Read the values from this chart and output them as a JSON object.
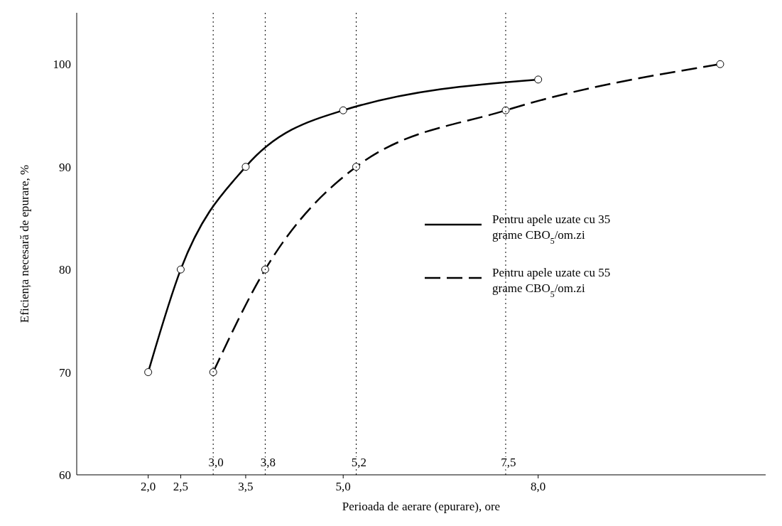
{
  "chart_data": {
    "type": "line",
    "xlabel": "Perioada de aerare  (epurare), ore",
    "ylabel": "Eficiența necesară de epurare, %",
    "xlim": [
      0.9,
      11.5
    ],
    "ylim": [
      60,
      105
    ],
    "xticks": [
      {
        "value": 2,
        "label": "2,0"
      },
      {
        "value": 2.5,
        "label": "2,5"
      },
      {
        "value": 3.5,
        "label": "3,5"
      },
      {
        "value": 5,
        "label": "5,0"
      },
      {
        "value": 8,
        "label": "8,0"
      }
    ],
    "yticks": [
      60,
      70,
      80,
      90,
      100
    ],
    "marker": "circle",
    "grid": false,
    "legend": "right",
    "series": [
      {
        "name": "Pentru apele uzate cu 35 grame CBO$_{5}$/om.zi",
        "color": "#000000",
        "line_style": "solid",
        "x": [
          2,
          2.5,
          3.5,
          5,
          8
        ],
        "values": [
          70,
          80,
          90,
          95.5,
          98.5
        ]
      },
      {
        "name": "Pentru apele uzate cu 55 grame CBO$_{5}$/om.zi",
        "color": "#000000",
        "line_style": "dashed",
        "x": [
          3,
          3.8,
          5.2,
          7.5,
          10.8
        ],
        "values": [
          70,
          80,
          90,
          95.5,
          100
        ]
      }
    ],
    "ref_lines": [
      {
        "axis": "x",
        "value": 3,
        "label": "3,0",
        "line_style": "dotted"
      },
      {
        "axis": "x",
        "value": 3.8,
        "label": "3,8",
        "line_style": "dotted"
      },
      {
        "axis": "x",
        "value": 5.2,
        "label": "5,2",
        "line_style": "dotted"
      },
      {
        "axis": "x",
        "value": 7.5,
        "label": "7,5",
        "line_style": "dotted"
      }
    ]
  }
}
